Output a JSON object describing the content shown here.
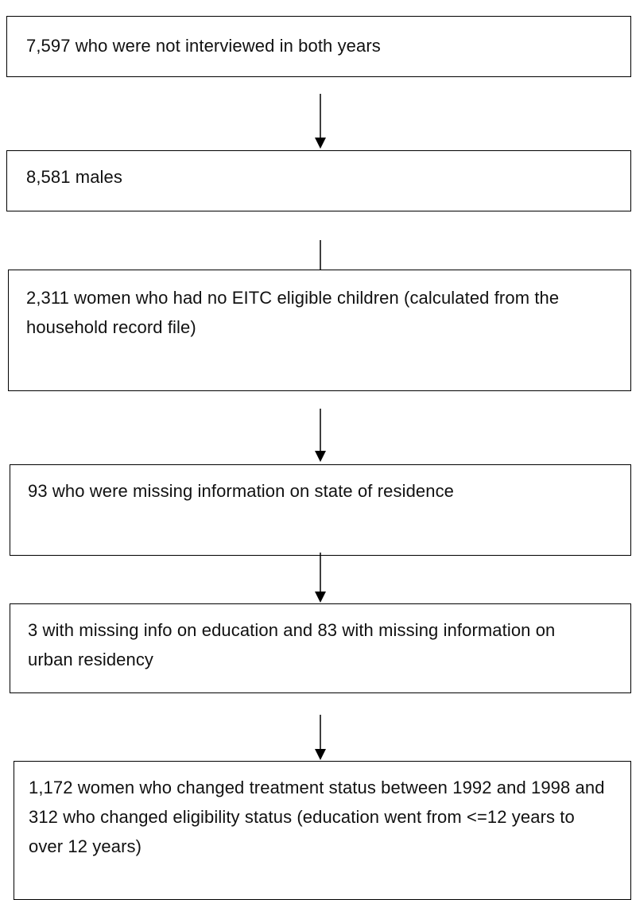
{
  "flowchart": {
    "steps": [
      {
        "text": "7,597 who were not interviewed in both years"
      },
      {
        "text": "8,581 males"
      },
      {
        "text": "2,311 women who had no EITC eligible children (calculated from the household record file)"
      },
      {
        "text": "93 who were missing information on state of residence"
      },
      {
        "text": "3 with missing info on education and 83 with missing information on urban residency"
      },
      {
        "text": "1,172 women who changed treatment status between 1992 and 1998 and 312 who changed eligibility status (education went from <=12 years to over 12 years)"
      }
    ]
  },
  "colors": {
    "stroke": "#000000",
    "text": "#111111",
    "background": "#ffffff"
  }
}
